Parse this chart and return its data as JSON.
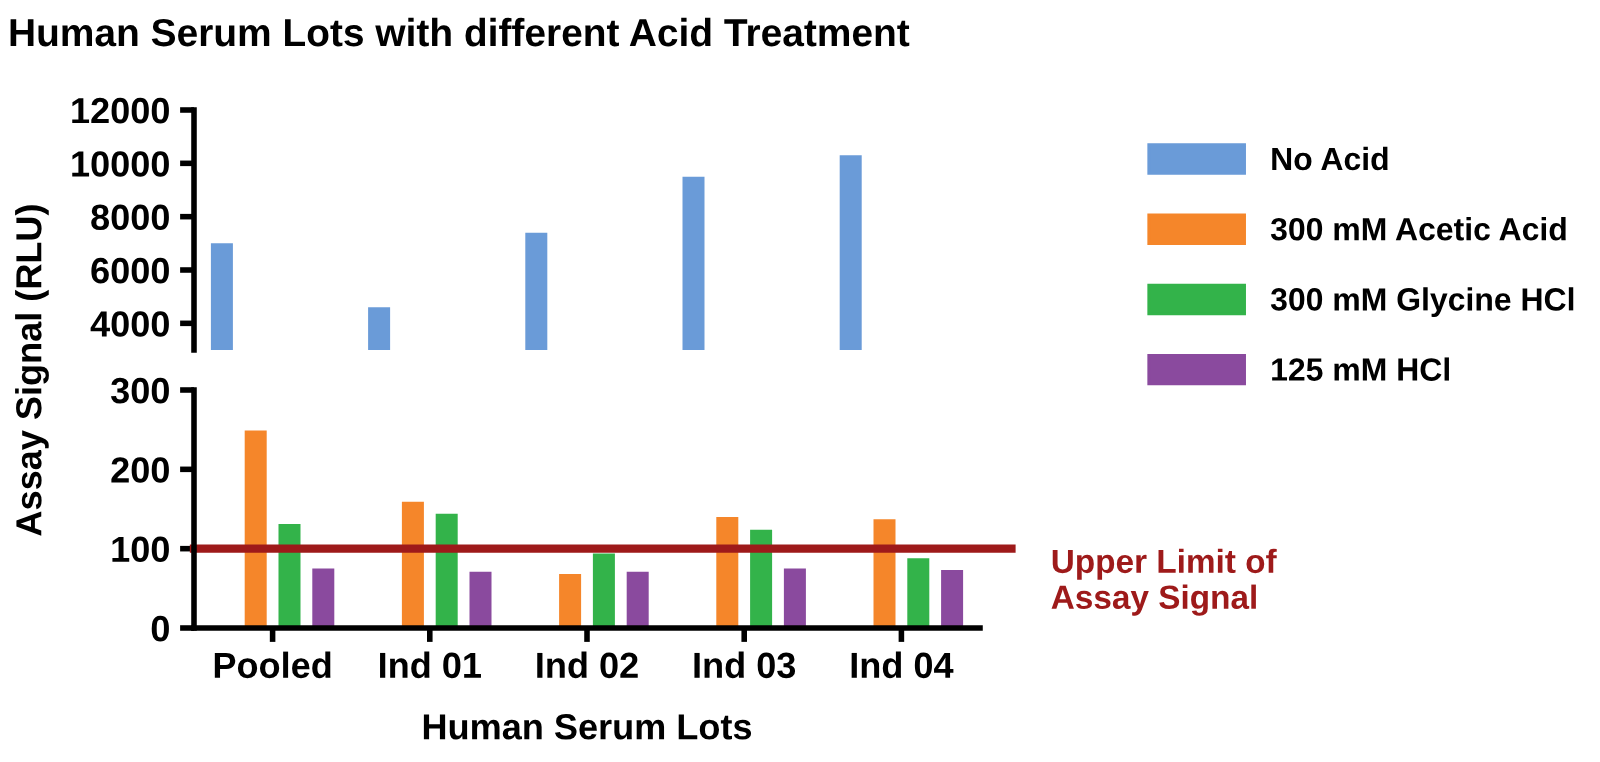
{
  "chart_data": [
    {
      "type": "bar",
      "title": "Human Serum Lots with different Acid Treatment",
      "ylabel": "Assay Signal (RLU)",
      "categories": [
        null,
        null,
        null,
        null,
        null
      ],
      "ylim": [
        3000,
        12000
      ],
      "yticks": [
        4000,
        6000,
        8000,
        10000,
        12000
      ],
      "tick_labels": "y",
      "grid": false,
      "legend": "right",
      "series": [
        {
          "name": "No Acid",
          "color": "#6a9bd8",
          "values": [
            7000,
            4600,
            7400,
            9500,
            10300
          ]
        }
      ]
    },
    {
      "type": "bar",
      "xlabel": "Human Serum Lots",
      "categories": [
        "Pooled",
        "Ind 01",
        "Ind 02",
        "Ind 03",
        "Ind 04"
      ],
      "ylim": [
        0,
        300
      ],
      "yticks": [
        0,
        100,
        200,
        300
      ],
      "grid": false,
      "legend": "right",
      "series": [
        {
          "color": "#6a9bd8",
          "values": [
            null,
            null,
            null,
            null,
            null
          ]
        },
        {
          "name": "300 mM Acetic Acid",
          "color": "#f5862a",
          "values": [
            249,
            159,
            68,
            140,
            137
          ]
        },
        {
          "name": "300 mM Glycine HCl",
          "color": "#33b34a",
          "values": [
            131,
            144,
            94,
            124,
            88
          ]
        },
        {
          "name": "125 mM HCl",
          "color": "#8a4a9e",
          "values": [
            75,
            71,
            71,
            75,
            73
          ]
        }
      ],
      "ref_lines": [
        {
          "axis": "y",
          "value": 100,
          "label": "Upper Limit of\nAssay Signal",
          "color": "#9e1a1a"
        }
      ]
    }
  ]
}
